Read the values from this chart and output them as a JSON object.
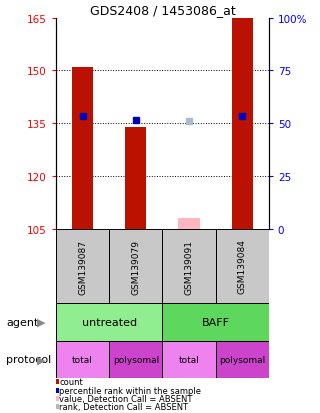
{
  "title": "GDS2408 / 1453086_at",
  "samples": [
    "GSM139087",
    "GSM139079",
    "GSM139091",
    "GSM139084"
  ],
  "ylim": [
    105,
    165
  ],
  "yticks": [
    105,
    120,
    135,
    150,
    165
  ],
  "y_right_ticks": [
    0,
    25,
    50,
    75,
    100
  ],
  "y_right_labels": [
    "0",
    "25",
    "50",
    "75",
    "100%"
  ],
  "red_bar_heights": [
    151,
    134,
    null,
    165
  ],
  "red_bar_base": 105,
  "pink_bar_height": 108,
  "pink_bar_base": 105,
  "blue_square_y": [
    137,
    136,
    null,
    137
  ],
  "light_blue_square_y": [
    null,
    null,
    135.5,
    null
  ],
  "agent_labels": [
    "untreated",
    "BAFF"
  ],
  "agent_colors": [
    "#90EE90",
    "#5DD85D"
  ],
  "protocol_labels": [
    "total",
    "polysomal",
    "total",
    "polysomal"
  ],
  "protocol_colors": [
    "#EE82EE",
    "#CC44CC",
    "#EE82EE",
    "#CC44CC"
  ],
  "sample_bg": "#C8C8C8",
  "red_color": "#BB1100",
  "blue_color": "#0000BB",
  "pink_color": "#FFB6C1",
  "light_blue_color": "#AABBCC",
  "legend_items": [
    {
      "color": "#BB1100",
      "label": "count"
    },
    {
      "color": "#0000BB",
      "label": "percentile rank within the sample"
    },
    {
      "color": "#FFB6C1",
      "label": "value, Detection Call = ABSENT"
    },
    {
      "color": "#AABBCC",
      "label": "rank, Detection Call = ABSENT"
    }
  ]
}
